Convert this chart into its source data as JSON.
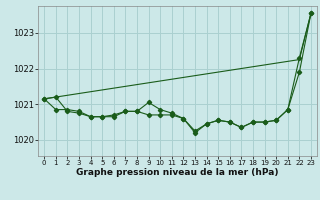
{
  "title": "Graphe pression niveau de la mer (hPa)",
  "background_color": "#cce8e8",
  "grid_color": "#aad0d0",
  "line_color": "#1a5c1a",
  "ylim": [
    1019.55,
    1023.75
  ],
  "yticks": [
    1020,
    1021,
    1022,
    1023
  ],
  "series_main": [
    1021.15,
    1021.2,
    1020.8,
    1020.75,
    1020.65,
    1020.65,
    1020.7,
    1020.8,
    1020.8,
    1021.05,
    1020.85,
    1020.75,
    1020.6,
    1020.25,
    1020.45,
    1020.55,
    1020.5,
    1020.35,
    1020.5,
    1020.5,
    1020.55,
    1020.85,
    1021.9,
    1023.55
  ],
  "series_secondary": [
    1021.15,
    1020.85,
    1020.85,
    1020.8,
    1020.65,
    1020.65,
    1020.65,
    1020.8,
    1020.8,
    1020.7,
    1020.7,
    1020.7,
    1020.6,
    1020.2,
    1020.45,
    1020.55,
    1020.5,
    1020.35,
    1020.5,
    1020.5,
    1020.55,
    1020.85,
    1022.3,
    1023.55
  ],
  "series_diagonal": [
    1021.15,
    1021.2,
    1021.25,
    1021.3,
    1021.35,
    1021.4,
    1021.45,
    1021.5,
    1021.55,
    1021.6,
    1021.65,
    1021.7,
    1021.75,
    1021.8,
    1021.85,
    1021.9,
    1021.95,
    1022.0,
    1022.05,
    1022.1,
    1022.15,
    1022.2,
    1022.25,
    1023.55
  ],
  "x_labels": [
    "0",
    "1",
    "2",
    "3",
    "4",
    "5",
    "6",
    "7",
    "8",
    "9",
    "10",
    "11",
    "12",
    "13",
    "14",
    "15",
    "16",
    "17",
    "18",
    "19",
    "20",
    "21",
    "22",
    "23"
  ]
}
